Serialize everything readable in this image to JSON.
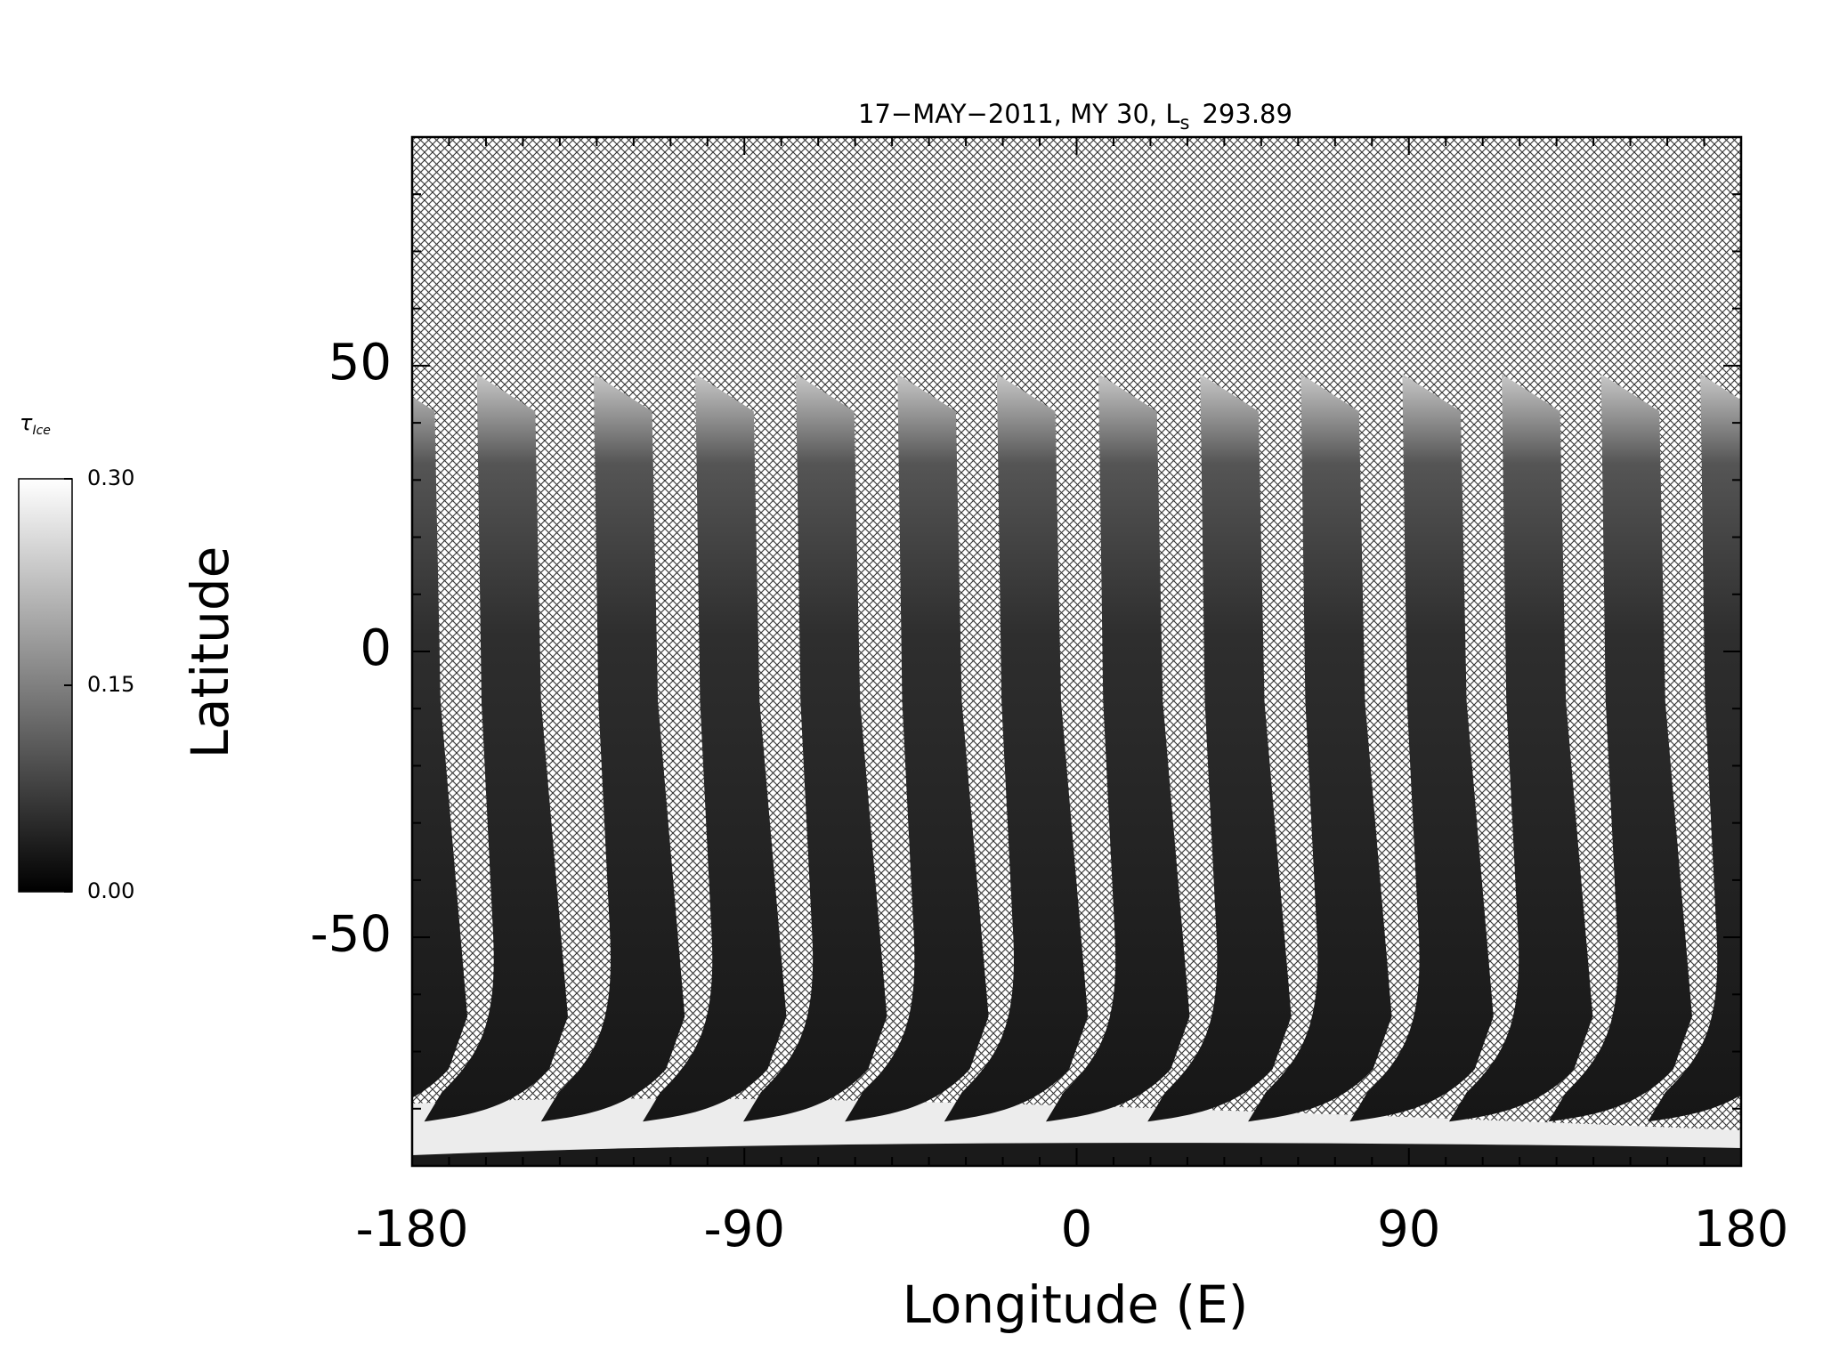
{
  "chart_data": {
    "type": "map",
    "title": "17−MAY−2011, MY 30,  L",
    "title_subscript": "s",
    "title_value": "293.89",
    "x_label": "Longitude (E)",
    "y_label": "Latitude",
    "xlim": [
      -180,
      180
    ],
    "ylim": [
      -90,
      90
    ],
    "xticks": [
      -180,
      -90,
      0,
      90,
      180
    ],
    "yticks": [
      -50,
      0,
      50
    ],
    "x_minor_ticks": [
      -170,
      -160,
      -150,
      -140,
      -130,
      -120,
      -110,
      -100,
      -80,
      -70,
      -60,
      -50,
      -40,
      -30,
      -20,
      -10,
      10,
      20,
      30,
      40,
      50,
      60,
      70,
      80,
      100,
      110,
      120,
      130,
      140,
      150,
      160,
      170
    ],
    "y_minor_ticks": [
      -80,
      -70,
      -60,
      -40,
      -30,
      -20,
      -10,
      10,
      20,
      30,
      40,
      60,
      70,
      80
    ],
    "colorbar": {
      "label": "τ",
      "label_subscript": "Ice",
      "clim": [
        0,
        0.3
      ],
      "ticks": [
        {
          "value": 0,
          "label": "0.00"
        },
        {
          "value": 0.15,
          "label": "0.15"
        },
        {
          "value": 0.3,
          "label": "0.30"
        }
      ]
    }
  }
}
